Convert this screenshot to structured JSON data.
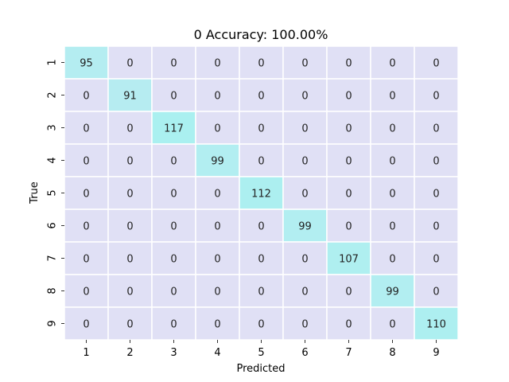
{
  "chart_data": {
    "type": "heatmap",
    "title": "0 Accuracy: 100.00%",
    "xlabel": "Predicted",
    "ylabel": "True",
    "x_categories": [
      "1",
      "2",
      "3",
      "4",
      "5",
      "6",
      "7",
      "8",
      "9"
    ],
    "y_categories": [
      "1",
      "2",
      "3",
      "4",
      "5",
      "6",
      "7",
      "8",
      "9"
    ],
    "values": [
      [
        95,
        0,
        0,
        0,
        0,
        0,
        0,
        0,
        0
      ],
      [
        0,
        91,
        0,
        0,
        0,
        0,
        0,
        0,
        0
      ],
      [
        0,
        0,
        117,
        0,
        0,
        0,
        0,
        0,
        0
      ],
      [
        0,
        0,
        0,
        99,
        0,
        0,
        0,
        0,
        0
      ],
      [
        0,
        0,
        0,
        0,
        112,
        0,
        0,
        0,
        0
      ],
      [
        0,
        0,
        0,
        0,
        0,
        99,
        0,
        0,
        0
      ],
      [
        0,
        0,
        0,
        0,
        0,
        0,
        107,
        0,
        0
      ],
      [
        0,
        0,
        0,
        0,
        0,
        0,
        0,
        99,
        0
      ],
      [
        0,
        0,
        0,
        0,
        0,
        0,
        0,
        0,
        110
      ]
    ],
    "color_low": "#e0e0f5",
    "color_high": "#aaf0f0",
    "grid_line_color": "#ffffff",
    "colorbar": false
  }
}
